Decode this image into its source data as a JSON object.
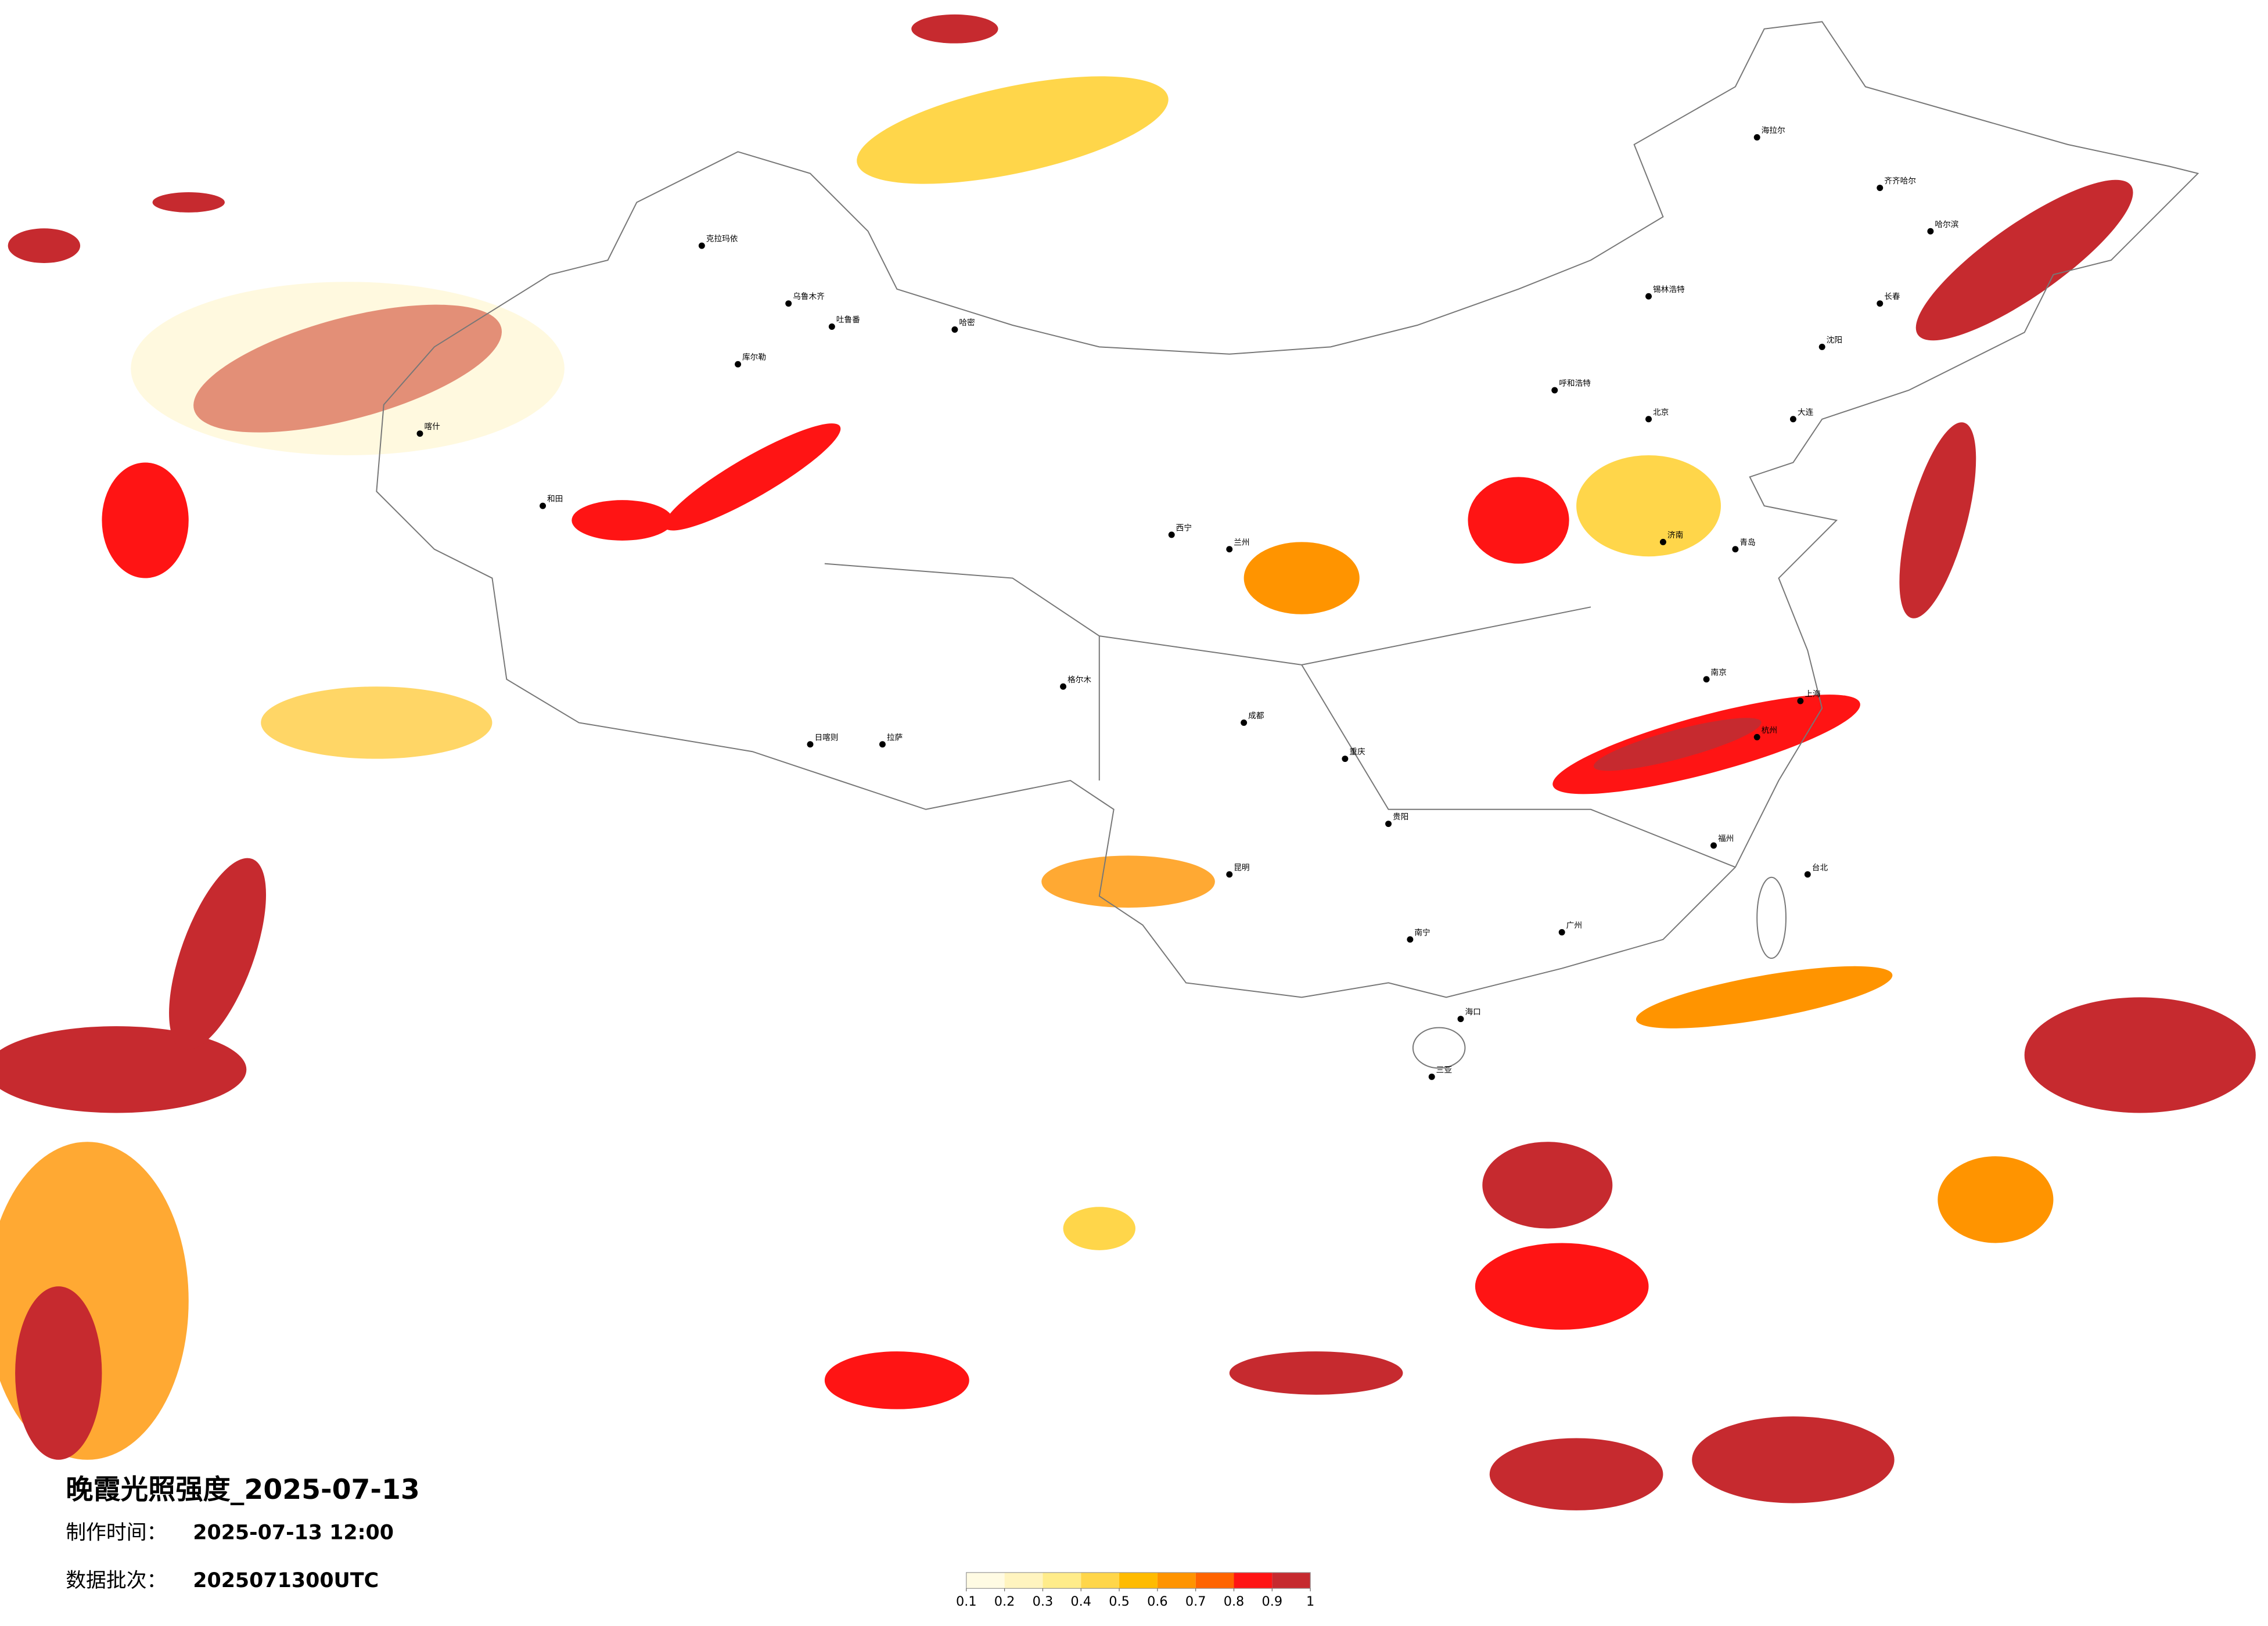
{
  "title": "晚霞光照强度_2025-07-13",
  "production_label": "制作时间：",
  "production_time": "2025-07-13 12:00",
  "batch_label": "数据批次：",
  "batch": "2025071300UTC",
  "colorbar": {
    "ticks": [
      0.1,
      0.2,
      0.3,
      0.4,
      0.5,
      0.6,
      0.7,
      0.8,
      0.9,
      1
    ],
    "colors": [
      "#fffbe3",
      "#fff4bf",
      "#ffec8a",
      "#ffd64a",
      "#ffbb00",
      "#ff9400",
      "#ff6400",
      "#ff1414",
      "#c62a2f"
    ]
  },
  "cities": [
    "海拉尔",
    "齐齐哈尔",
    "哈尔滨",
    "长春",
    "沈阳",
    "大连",
    "锡林浩特",
    "呼和浩特",
    "北京",
    "济南",
    "青岛",
    "南京",
    "上海",
    "杭州",
    "福州",
    "台北",
    "广州",
    "海口",
    "三亚",
    "南宁",
    "贵阳",
    "昆明",
    "重庆",
    "成都",
    "兰州",
    "西宁",
    "格尔木",
    "拉萨",
    "日喀则",
    "和田",
    "喀什",
    "库尔勒",
    "克拉玛依",
    "乌鲁木齐",
    "吐鲁番",
    "哈密"
  ]
}
